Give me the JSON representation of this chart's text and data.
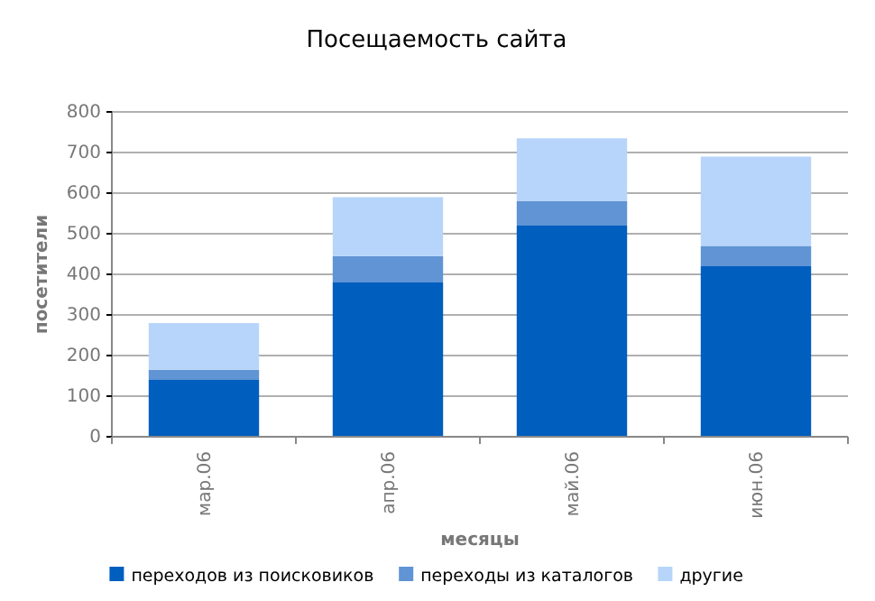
{
  "chart_data": {
    "type": "bar",
    "title": "Посещаемость сайта",
    "xlabel": "месяцы",
    "ylabel": "посетители",
    "categories": [
      "мар.06",
      "апр.06",
      "май.06",
      "июн.06"
    ],
    "stacked": true,
    "series": [
      {
        "name": "переходов из поисковиков",
        "color": "#005ebf",
        "values": [
          140,
          380,
          520,
          420
        ]
      },
      {
        "name": "переходы из каталогов",
        "color": "#6094d4",
        "values": [
          25,
          65,
          60,
          50
        ]
      },
      {
        "name": "другие",
        "color": "#b7d5fa",
        "values": [
          115,
          145,
          155,
          220
        ]
      }
    ],
    "ylim": [
      0,
      800
    ],
    "yticks": [
      0,
      100,
      200,
      300,
      400,
      500,
      600,
      700,
      800
    ],
    "grid": "y",
    "legend": "bottom"
  }
}
